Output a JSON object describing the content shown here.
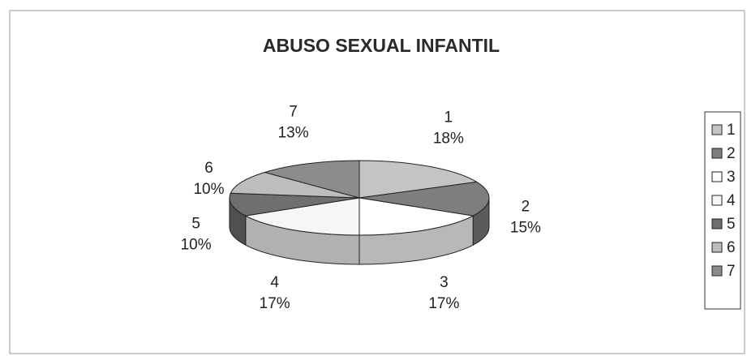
{
  "chart_data": {
    "type": "pie3d",
    "title": "ABUSO SEXUAL INFANTIL",
    "categories": [
      "1",
      "2",
      "3",
      "4",
      "5",
      "6",
      "7"
    ],
    "values": [
      18,
      15,
      17,
      17,
      10,
      10,
      13
    ],
    "value_labels": [
      "18%",
      "15%",
      "17%",
      "17%",
      "10%",
      "10%",
      "13%"
    ],
    "colors": [
      "#c4c4c4",
      "#7e7e7e",
      "#ffffff",
      "#f6f6f6",
      "#6f6f6f",
      "#bdbdbd",
      "#8c8c8c"
    ],
    "legend": "right"
  }
}
